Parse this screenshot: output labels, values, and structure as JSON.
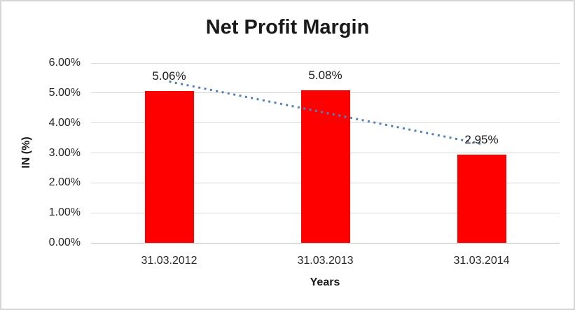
{
  "chart_data": {
    "type": "bar",
    "title": "Net Profit Margin",
    "xlabel": "Years",
    "ylabel": "IN (%)",
    "categories": [
      "31.03.2012",
      "31.03.2013",
      "31.03.2014"
    ],
    "values": [
      5.06,
      5.08,
      2.95
    ],
    "data_labels": [
      "5.06%",
      "5.08%",
      "2.95%"
    ],
    "ylim": [
      0,
      6
    ],
    "ytick_step": 1,
    "ytick_labels": [
      "0.00%",
      "1.00%",
      "2.00%",
      "3.00%",
      "4.00%",
      "5.00%",
      "6.00%"
    ],
    "grid": true,
    "legend": "none",
    "bar_color": "#FF0000",
    "trendline": {
      "type": "linear",
      "style": "dotted",
      "color": "#4F81BD",
      "start_value": 5.38,
      "end_value": 3.3
    }
  },
  "colors": {
    "gridline": "#D9D9D9",
    "zero_axis": "#BFBFBF",
    "tick_text": "#262626",
    "title_text": "#1A1A1A",
    "frame_border": "#D6D6D6",
    "background": "#FFFFFF"
  }
}
